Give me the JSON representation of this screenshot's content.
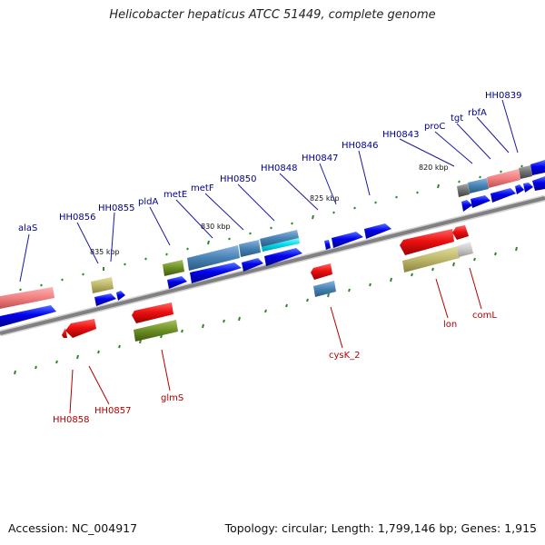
{
  "title": "Helicobacter hepaticus ATCC 51449, complete genome",
  "footer": {
    "accession": "Accession: NC_004917",
    "summary": "Topology: circular; Length: 1,799,146 bp; Genes: 1,915"
  },
  "colors": {
    "forward_gene": "#0000ee",
    "reverse_gene": "#ee1111",
    "forward_label": "#00008b",
    "reverse_label": "#b00000",
    "backbone": "#808080",
    "tick": "#2a8a2a"
  },
  "ruler": [
    {
      "label": "835 kbp"
    },
    {
      "label": "830 kbp"
    },
    {
      "label": "825 kbp"
    },
    {
      "label": "820 kbp"
    }
  ],
  "genes_top": [
    {
      "label": "alaS"
    },
    {
      "label": "HH0856"
    },
    {
      "label": "HH0855"
    },
    {
      "label": "pldA"
    },
    {
      "label": "metE"
    },
    {
      "label": "metF"
    },
    {
      "label": "HH0850"
    },
    {
      "label": "HH0848"
    },
    {
      "label": "HH0847"
    },
    {
      "label": "HH0846"
    },
    {
      "label": "HH0843"
    },
    {
      "label": "proC"
    },
    {
      "label": "tgt"
    },
    {
      "label": "rbfA"
    },
    {
      "label": "HH0839"
    }
  ],
  "genes_bottom": [
    {
      "label": "HH0858"
    },
    {
      "label": "HH0857"
    },
    {
      "label": "glmS"
    },
    {
      "label": "cysK_2"
    },
    {
      "label": "lon"
    },
    {
      "label": "comL"
    }
  ]
}
